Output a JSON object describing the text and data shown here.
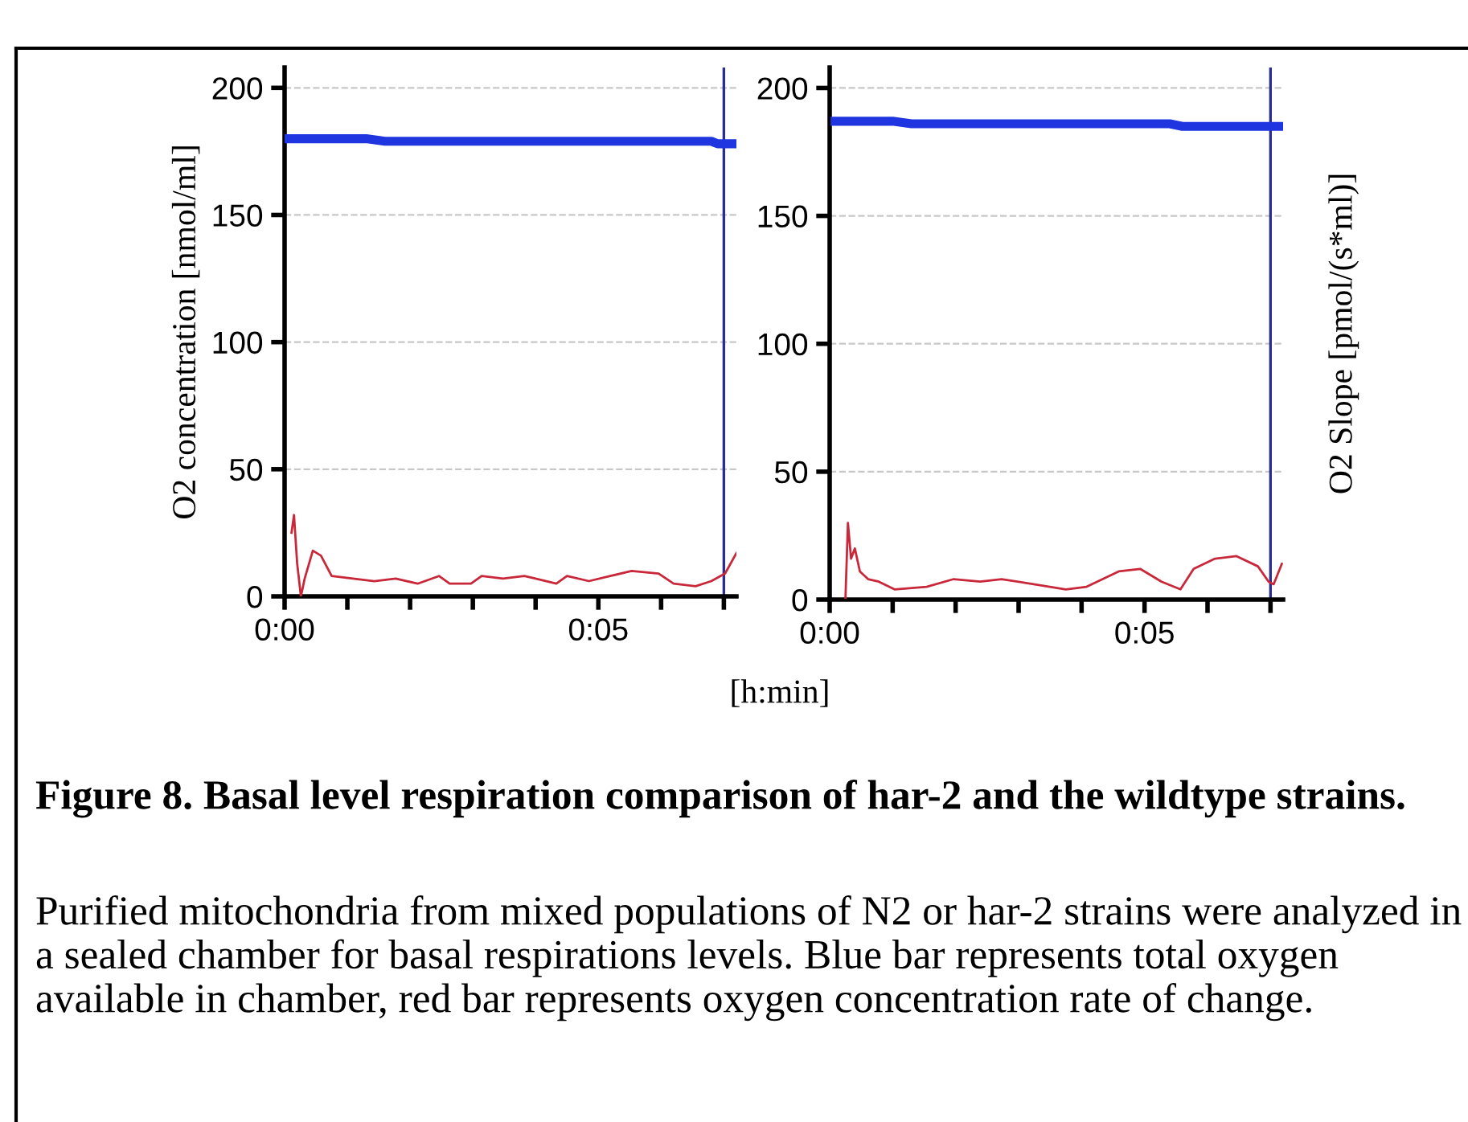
{
  "chart_data": [
    {
      "type": "line",
      "ylabel": "O2 concentration [nmol/ml]",
      "xlim": [
        0,
        7.2
      ],
      "ylim": [
        0,
        208
      ],
      "xticks": [
        {
          "value": 0,
          "label": "0:00"
        },
        {
          "value": 1,
          "label": null
        },
        {
          "value": 2,
          "label": null
        },
        {
          "value": 3,
          "label": null
        },
        {
          "value": 4,
          "label": null
        },
        {
          "value": 5,
          "label": "0:05"
        },
        {
          "value": 6,
          "label": null
        },
        {
          "value": 7,
          "label": null
        }
      ],
      "yticks": [
        0,
        50,
        100,
        150,
        200
      ],
      "grid": "y",
      "ref_lines": [
        {
          "axis": "x",
          "value": 7,
          "color": "#2b2f8c"
        }
      ],
      "series": [
        {
          "color": "#1f35e0",
          "x": [
            0,
            1.3,
            1.6,
            2.6,
            4.0,
            6.8,
            6.9,
            7.2
          ],
          "values": [
            180,
            180,
            179,
            179,
            179,
            179,
            178,
            178
          ]
        },
        {
          "color": "#c8283a",
          "x": [
            0.11,
            0.15,
            0.2,
            0.26,
            0.32,
            0.45,
            0.58,
            0.75,
            1.09,
            1.43,
            1.77,
            2.12,
            2.46,
            2.63,
            2.97,
            3.14,
            3.48,
            3.82,
            4.0,
            4.33,
            4.5,
            4.85,
            5.19,
            5.53,
            5.96,
            6.2,
            6.55,
            6.8,
            7.02,
            7.2
          ],
          "values": [
            25,
            32,
            13,
            0,
            7,
            18,
            16,
            8,
            7,
            6,
            7,
            5,
            8,
            5,
            5,
            8,
            7,
            8,
            7,
            5,
            8,
            6,
            8,
            10,
            9,
            5,
            4,
            6,
            9,
            17
          ]
        }
      ],
      "annotations": [
        "Figure 8. Basal level respiration comparison of har-2 and the wildtype strains.",
        "Purified mitochondria from mixed populations of N2 or har-2 strains were analyzed in a sealed chamber for basal respirations levels. Blue bar represents total oxygen available in chamber, red bar represents oxygen concentration rate of change."
      ]
    },
    {
      "type": "line",
      "xlabel": "[h:min]",
      "y2label": "O2 Slope [pmol/(s*ml)]",
      "xlim": [
        0,
        7.2
      ],
      "ylim": [
        0,
        208
      ],
      "xticks": [
        {
          "value": 0,
          "label": "0:00"
        },
        {
          "value": 1,
          "label": null
        },
        {
          "value": 2,
          "label": null
        },
        {
          "value": 3,
          "label": null
        },
        {
          "value": 4,
          "label": null
        },
        {
          "value": 5,
          "label": "0:05"
        },
        {
          "value": 6,
          "label": null
        },
        {
          "value": 7,
          "label": null
        }
      ],
      "yticks": [
        0,
        50,
        100,
        150,
        200
      ],
      "grid": "y",
      "ref_lines": [
        {
          "axis": "x",
          "value": 7,
          "color": "#2b2f8c"
        }
      ],
      "series": [
        {
          "color": "#1f35e0",
          "x": [
            0,
            1.0,
            1.3,
            5.4,
            5.6,
            7.18
          ],
          "values": [
            187,
            187,
            186,
            186,
            185,
            185
          ]
        },
        {
          "color": "#c8283a",
          "x": [
            0.25,
            0.29,
            0.34,
            0.4,
            0.48,
            0.61,
            0.78,
            1.03,
            1.54,
            1.97,
            2.39,
            2.73,
            3.24,
            3.75,
            4.08,
            4.59,
            4.93,
            5.27,
            5.57,
            5.78,
            6.12,
            6.46,
            6.8,
            6.97,
            7.05,
            7.18
          ],
          "values": [
            0,
            30,
            16,
            20,
            11,
            8,
            7,
            4,
            5,
            8,
            7,
            8,
            6,
            4,
            5,
            11,
            12,
            7,
            4,
            12,
            16,
            17,
            13,
            7,
            6,
            14
          ]
        }
      ]
    }
  ]
}
